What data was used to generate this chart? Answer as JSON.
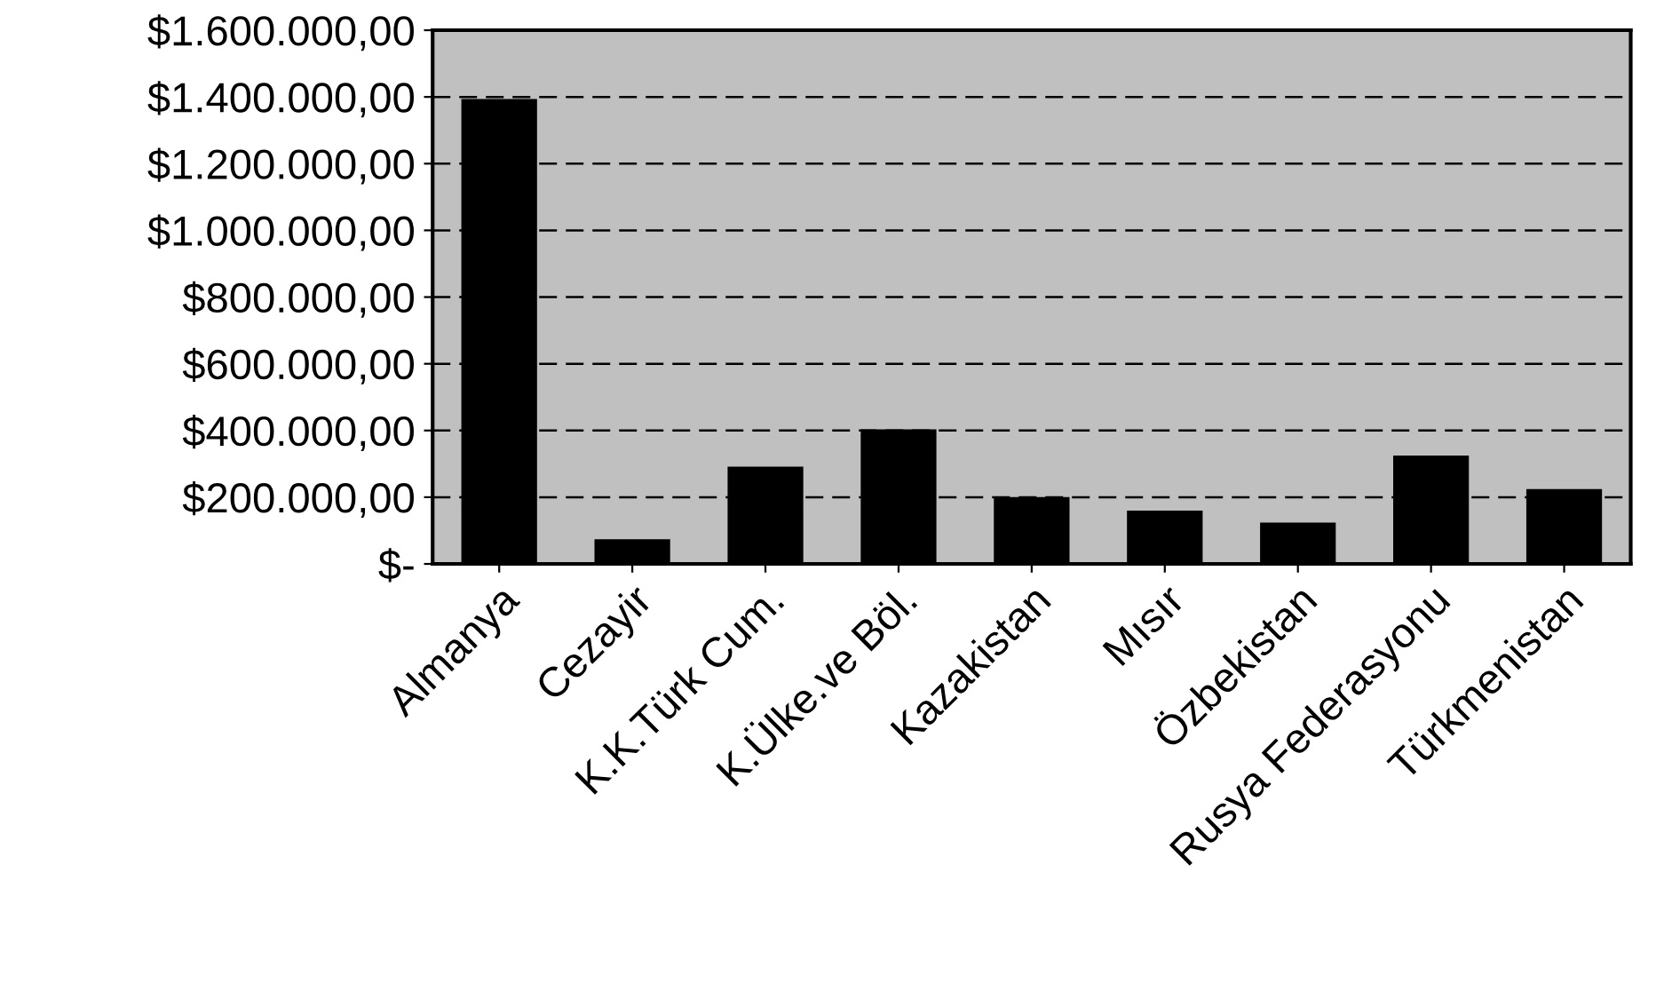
{
  "chart_data": {
    "type": "bar",
    "categories": [
      "Almanya",
      "Cezayir",
      "K.K.Türk Cum.",
      "K.Ülke.ve Böl.",
      "Kazakistan",
      "Mısır",
      "Özbekistan",
      "Rusya Federasyonu",
      "Türkmenistan"
    ],
    "values": [
      1390000,
      70000,
      288000,
      400000,
      197000,
      156000,
      120000,
      321000,
      221000
    ],
    "color": "#000000",
    "ylim": [
      0,
      1600000
    ],
    "yticks": [
      {
        "value": 0,
        "label": "$-"
      },
      {
        "value": 200000,
        "label": "$200.000,00"
      },
      {
        "value": 400000,
        "label": "$400.000,00"
      },
      {
        "value": 600000,
        "label": "$600.000,00"
      },
      {
        "value": 800000,
        "label": "$800.000,00"
      },
      {
        "value": 1000000,
        "label": "$1.000.000,00"
      },
      {
        "value": 1200000,
        "label": "$1.200.000,00"
      },
      {
        "value": 1400000,
        "label": "$1.400.000,00"
      },
      {
        "value": 1600000,
        "label": "$1.600.000,00"
      }
    ],
    "grid": "y",
    "line_style": "dashed"
  }
}
